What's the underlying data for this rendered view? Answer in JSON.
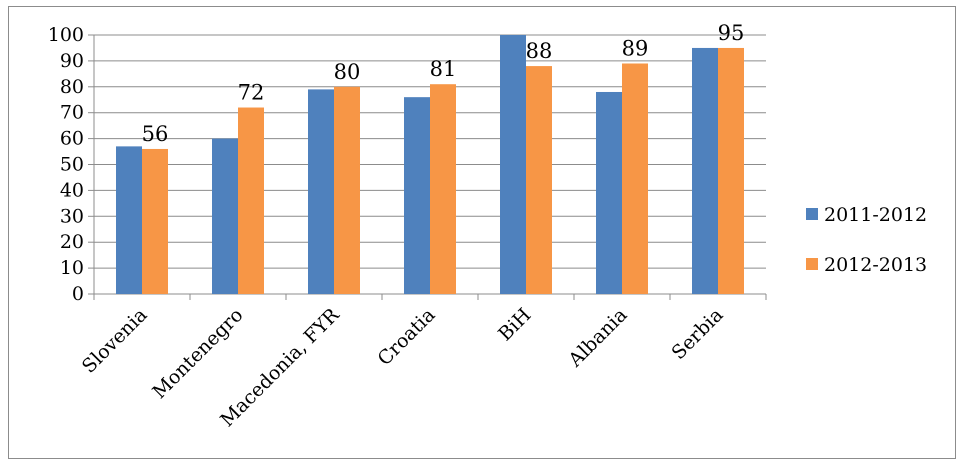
{
  "chart_data": {
    "type": "bar",
    "categories": [
      "Slovenia",
      "Montenegro",
      "Macedonia, FYR",
      "Croatia",
      "BiH",
      "Albania",
      "Serbia"
    ],
    "series": [
      {
        "name": "2011-2012",
        "values": [
          57,
          60,
          79,
          76,
          100,
          78,
          95
        ],
        "color": "#4F81BD",
        "data_labels": []
      },
      {
        "name": "2012-2013",
        "values": [
          56,
          72,
          80,
          81,
          88,
          89,
          95
        ],
        "color": "#F79646",
        "data_labels": [
          "56",
          "72",
          "80",
          "81",
          "88",
          "89",
          "95"
        ]
      }
    ],
    "y_ticks": [
      "0",
      "10",
      "20",
      "30",
      "40",
      "50",
      "60",
      "70",
      "80",
      "90",
      "100"
    ],
    "ylim": [
      0,
      100
    ],
    "grid": true,
    "legend": "right"
  }
}
